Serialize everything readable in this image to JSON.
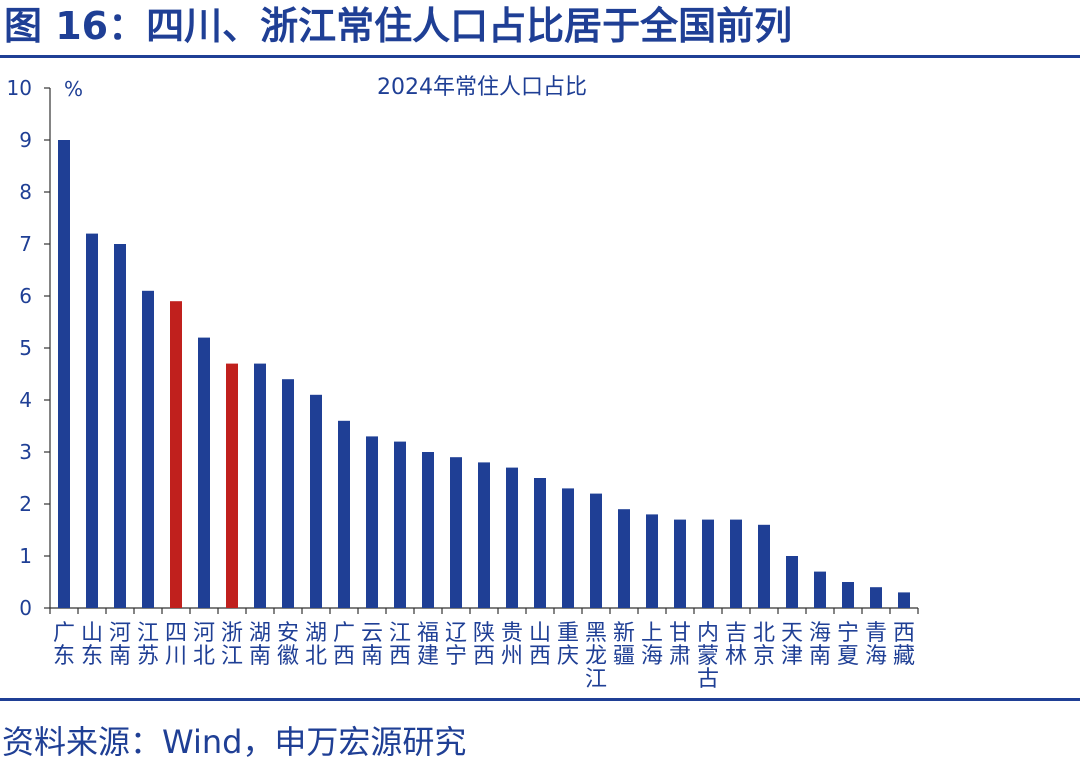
{
  "header": {
    "title": "图 16：四川、浙江常住人口占比居于全国前列"
  },
  "footer": {
    "source": "资料来源：Wind，申万宏源研究"
  },
  "colors": {
    "brand": "#1f3f95",
    "bar_default": "#1f3f95",
    "bar_highlight": "#c0201d",
    "axis": "#333333"
  },
  "chart_data": {
    "type": "bar",
    "title": "2024年常住人口占比",
    "ylabel": "%",
    "xlabel": "",
    "ylim": [
      0,
      10
    ],
    "yticks": [
      0,
      1,
      2,
      3,
      4,
      5,
      6,
      7,
      8,
      9,
      10
    ],
    "grid": false,
    "legend": "none",
    "categories": [
      "广东",
      "山东",
      "河南",
      "江苏",
      "四川",
      "河北",
      "浙江",
      "湖南",
      "安徽",
      "湖北",
      "广西",
      "云南",
      "江西",
      "福建",
      "辽宁",
      "陕西",
      "贵州",
      "山西",
      "重庆",
      "黑龙江",
      "新疆",
      "上海",
      "甘肃",
      "内蒙古",
      "吉林",
      "北京",
      "天津",
      "海南",
      "宁夏",
      "青海",
      "西藏"
    ],
    "values": [
      9.0,
      7.2,
      7.0,
      6.1,
      5.9,
      5.2,
      4.7,
      4.7,
      4.4,
      4.1,
      3.6,
      3.3,
      3.2,
      3.0,
      2.9,
      2.8,
      2.7,
      2.5,
      2.3,
      2.2,
      1.9,
      1.8,
      1.7,
      1.7,
      1.7,
      1.6,
      1.0,
      0.7,
      0.5,
      0.4,
      0.3
    ],
    "highlight": [
      "四川",
      "浙江"
    ]
  }
}
